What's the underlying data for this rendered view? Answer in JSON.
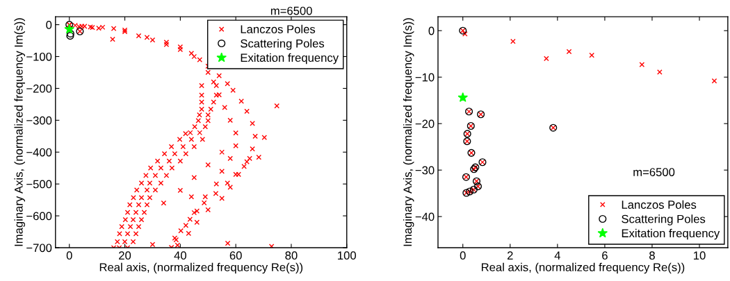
{
  "chart_data": [
    {
      "type": "scatter",
      "title": "m=6500",
      "xlabel": "Real axis, (normalized frequency Re(s))",
      "ylabel": "Imaginary Axis, (normalized frequency Im(s))",
      "xlim": [
        -5,
        100
      ],
      "xticks": [
        0,
        20,
        40,
        60,
        80,
        100
      ],
      "ylim": [
        -700,
        25
      ],
      "yticks": [
        -700,
        -600,
        -500,
        -400,
        -300,
        -200,
        -100,
        0
      ],
      "legend": "top right",
      "grid": false,
      "series": [
        {
          "name": "Lanczos Poles",
          "color": "#ff0000",
          "marker": "cross",
          "x": [
            0,
            0.1,
            2.1,
            3.5,
            4.5,
            5.5,
            7.6,
            8.3,
            10.6,
            3.8,
            12,
            16,
            20,
            25,
            30,
            35,
            40,
            45,
            50,
            54,
            57,
            59,
            62,
            64,
            66,
            67,
            66,
            64,
            61,
            58,
            55,
            50,
            46,
            43,
            39,
            20,
            28,
            35,
            40,
            44,
            47,
            50,
            52,
            54,
            56,
            58,
            60,
            60,
            58,
            55,
            53,
            49,
            45,
            42,
            38,
            47.7,
            53,
            47.7,
            53,
            47.7,
            52,
            47.7,
            51,
            46.9,
            50,
            46.5,
            50,
            45.2,
            49,
            43.6,
            41.9,
            47,
            39.8,
            44,
            48,
            36.8,
            41,
            45,
            34.3,
            38,
            42,
            31.8,
            36,
            40,
            29.3,
            33,
            37,
            27.6,
            31,
            35,
            26,
            29,
            33,
            24.3,
            28,
            31,
            23.1,
            26,
            29,
            21.8,
            25,
            28,
            21,
            24,
            27,
            20.2,
            23,
            26,
            18.9,
            22,
            25,
            18.1,
            21,
            24,
            17.3,
            20,
            23,
            16,
            18,
            21,
            36.8,
            38.5,
            40.2,
            43.5,
            46,
            48.6,
            52.8,
            57,
            60,
            63,
            65,
            15.6,
            74.8,
            70.3,
            68.3,
            57.1,
            72.9,
            30,
            34,
            40,
            44,
            50,
            55,
            45
          ],
          "values": [
            0,
            -1,
            -2,
            -6,
            -5,
            -5,
            -7,
            -9,
            -11,
            -21,
            -8,
            -12,
            -17,
            -35,
            -48,
            -62,
            -78,
            -100,
            -130,
            -160,
            -185,
            -206,
            -240,
            -272,
            -310,
            -350,
            -390,
            -430,
            -470,
            -510,
            -545,
            -581,
            -620,
            -655,
            -692,
            -22,
            -40,
            -55,
            -70,
            -90,
            -110,
            -150,
            -180,
            -220,
            -260,
            -300,
            -340,
            -380,
            -420,
            -460,
            -500,
            -540,
            -590,
            -630,
            -670,
            -191,
            -191,
            -221,
            -221,
            -243,
            -243,
            -265,
            -265,
            -283,
            -283,
            -301,
            -301,
            -320,
            -320,
            -339,
            -342,
            -339,
            -360,
            -360,
            -360,
            -383,
            -383,
            -383,
            -405,
            -405,
            -405,
            -428,
            -428,
            -428,
            -450,
            -450,
            -450,
            -473,
            -473,
            -473,
            -497,
            -497,
            -497,
            -519,
            -519,
            -519,
            -543,
            -543,
            -543,
            -565,
            -565,
            -565,
            -589,
            -589,
            -589,
            -612,
            -612,
            -612,
            -634,
            -634,
            -634,
            -656,
            -656,
            -656,
            -681,
            -681,
            -681,
            -700,
            -700,
            -700,
            -699,
            -675,
            -647,
            -611,
            -585,
            -559,
            -530,
            -497,
            -470,
            -445,
            -420,
            -46,
            -255,
            -354,
            -416,
            -686,
            -696,
            -690,
            -560,
            -520,
            -540,
            -440,
            -400,
            -480
          ]
        },
        {
          "name": "Scattering Poles",
          "color": "#000000",
          "marker": "circle",
          "x": [
            0,
            3.8,
            0.4,
            0.3
          ],
          "values": [
            0,
            -21,
            -28,
            -35
          ]
        },
        {
          "name": "Exitation frequency",
          "color": "#00ff00",
          "marker": "star",
          "x": [
            0
          ],
          "values": [
            -14
          ]
        }
      ]
    },
    {
      "type": "scatter",
      "title": "m=6500",
      "xlabel": "Real axis, (normalized frequency Re(s))",
      "ylabel": "Imaginary Axis, (normalized frequency Im(s))",
      "xlim": [
        -1.05,
        11.2
      ],
      "xticks": [
        0,
        2,
        4,
        6,
        8,
        10
      ],
      "ylim": [
        -46.7,
        3
      ],
      "yticks": [
        -40,
        -30,
        -20,
        -10,
        0
      ],
      "legend": "bottom right",
      "grid": false,
      "series": [
        {
          "name": "Lanczos Poles",
          "color": "#ff0000",
          "marker": "cross",
          "x": [
            0,
            0.09,
            2.12,
            3.53,
            4.49,
            5.45,
            7.57,
            8.32,
            10.63,
            0.26,
            0.76,
            0.34,
            3.82,
            0.19,
            0.18,
            0.36,
            0.83,
            0.53,
            0.47,
            0.14,
            0.58,
            0.64,
            0.46,
            0.29,
            0.15
          ],
          "values": [
            0,
            -0.7,
            -2.3,
            -6.0,
            -4.5,
            -5.3,
            -7.3,
            -8.9,
            -10.8,
            -17.4,
            -18.0,
            -20.5,
            -20.9,
            -22.2,
            -23.8,
            -26.3,
            -28.3,
            -29.4,
            -29.8,
            -31.5,
            -32.4,
            -33.5,
            -34.2,
            -34.6,
            -34.9
          ]
        },
        {
          "name": "Scattering Poles",
          "color": "#000000",
          "marker": "circle",
          "x": [
            0,
            0.26,
            0.76,
            0.34,
            3.82,
            0.19,
            0.18,
            0.36,
            0.83,
            0.53,
            0.47,
            0.14,
            0.58,
            0.64,
            0.46,
            0.29,
            0.15
          ],
          "values": [
            0,
            -17.4,
            -18.0,
            -20.5,
            -20.9,
            -22.2,
            -23.8,
            -26.3,
            -28.3,
            -29.4,
            -29.8,
            -31.5,
            -32.4,
            -33.5,
            -34.2,
            -34.6,
            -34.9
          ]
        },
        {
          "name": "Exitation frequency",
          "color": "#00ff00",
          "marker": "star",
          "x": [
            0
          ],
          "values": [
            -14.4
          ]
        }
      ]
    }
  ]
}
